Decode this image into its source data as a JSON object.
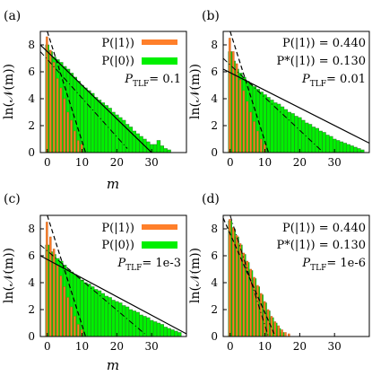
{
  "figure": {
    "colors": {
      "p1": "#ff7f2a",
      "p0": "#00f000",
      "bar_edge": "#2a7a2a",
      "fit": "#000000"
    }
  },
  "chart_data": [
    {
      "type": "bar",
      "panel": "(a)",
      "xlabel": "m",
      "ylabel": "ln(𝒩(m))",
      "xlim": [
        -2,
        40
      ],
      "ylim": [
        0,
        9
      ],
      "xticks": [
        "0",
        "10",
        "20",
        "30"
      ],
      "yticks": [
        "0",
        "2",
        "4",
        "6",
        "8"
      ],
      "legend": [
        "P(|1⟩)",
        "P(|0⟩)"
      ],
      "annotations": [
        "P_TLF = 0.1"
      ],
      "ptlf": "0.1",
      "series": [
        {
          "name": "P(|1⟩)",
          "x": [
            0,
            1,
            2,
            3,
            4,
            5,
            6,
            7,
            8,
            9,
            10
          ],
          "values": [
            8.6,
            7.6,
            6.7,
            5.5,
            4.8,
            4.0,
            3.0,
            2.4,
            1.6,
            0.9,
            0.6
          ]
        },
        {
          "name": "P(|0⟩)",
          "x": [
            0,
            1,
            2,
            3,
            4,
            5,
            6,
            7,
            8,
            9,
            10,
            11,
            12,
            13,
            14,
            15,
            16,
            17,
            18,
            19,
            20,
            21,
            22,
            23,
            24,
            25,
            26,
            27,
            28,
            29,
            30,
            31,
            32,
            33,
            34,
            35
          ],
          "values": [
            8.0,
            7.5,
            7.1,
            6.9,
            6.7,
            6.4,
            6.2,
            5.9,
            5.6,
            5.3,
            5.0,
            4.8,
            4.6,
            4.4,
            4.1,
            3.9,
            3.7,
            3.5,
            3.3,
            3.0,
            2.8,
            2.6,
            2.4,
            2.1,
            1.9,
            1.6,
            1.4,
            1.2,
            1.0,
            0.8,
            0.6,
            0.6,
            0.9,
            0.5,
            0.3,
            0.2
          ]
        }
      ],
      "fit_lines": [
        {
          "x": [
            0,
            11
          ],
          "y": [
            9,
            0
          ]
        },
        {
          "x": [
            -2,
            30
          ],
          "y": [
            8.0,
            0
          ]
        }
      ],
      "dashdot_lines": [
        {
          "x": [
            -2,
            23
          ],
          "y": [
            7.5,
            0.3
          ]
        }
      ]
    },
    {
      "type": "bar",
      "panel": "(b)",
      "xlabel": "m",
      "ylabel": "ln(𝒩(m))",
      "xlim": [
        -2,
        40
      ],
      "ylim": [
        0,
        9
      ],
      "xticks": [
        "0",
        "10",
        "20",
        "30"
      ],
      "yticks": [
        "0",
        "2",
        "4",
        "6",
        "8"
      ],
      "annotations": [
        "P(|1⟩) = 0.440",
        "P*(|1⟩) = 0.130",
        "P_TLF = 0.01"
      ],
      "ptlf": "0.01",
      "p1": "0.440",
      "p1star": "0.130",
      "series": [
        {
          "name": "P(|1⟩)",
          "x": [
            0,
            1,
            2,
            3,
            4,
            5,
            6,
            7,
            8,
            9,
            10
          ],
          "values": [
            8.5,
            7.5,
            6.6,
            5.4,
            4.6,
            3.8,
            3.0,
            2.3,
            1.6,
            1.0,
            0.6
          ]
        },
        {
          "name": "P(|0⟩)",
          "x": [
            0,
            1,
            2,
            3,
            4,
            5,
            6,
            7,
            8,
            9,
            10,
            11,
            12,
            13,
            14,
            15,
            16,
            17,
            18,
            19,
            20,
            21,
            22,
            23,
            24,
            25,
            26,
            27,
            28,
            29,
            30,
            31,
            32,
            33,
            34,
            35,
            36,
            37,
            38
          ],
          "values": [
            7.5,
            6.8,
            6.2,
            5.9,
            5.6,
            5.3,
            5.1,
            4.9,
            4.7,
            4.5,
            4.3,
            4.1,
            3.9,
            3.7,
            3.6,
            3.4,
            3.2,
            3.0,
            2.9,
            2.7,
            2.6,
            2.4,
            2.2,
            2.1,
            1.9,
            1.8,
            1.6,
            1.5,
            1.3,
            1.2,
            1.0,
            0.9,
            0.8,
            0.7,
            0.6,
            0.5,
            0.4,
            0.3,
            0.2
          ]
        }
      ],
      "fit_lines": [
        {
          "x": [
            0,
            11
          ],
          "y": [
            9,
            0
          ]
        },
        {
          "x": [
            -2,
            40
          ],
          "y": [
            6.2,
            0.7
          ]
        }
      ],
      "dashdot_lines": [
        {
          "x": [
            -2,
            26
          ],
          "y": [
            7.0,
            0.2
          ]
        }
      ]
    },
    {
      "type": "bar",
      "panel": "(c)",
      "xlabel": "m",
      "ylabel": "ln(𝒩(m))",
      "xlim": [
        -2,
        40
      ],
      "ylim": [
        0,
        9
      ],
      "xticks": [
        "0",
        "10",
        "20",
        "30"
      ],
      "yticks": [
        "0",
        "2",
        "4",
        "6",
        "8"
      ],
      "legend": [
        "P(|1⟩)",
        "P(|0⟩)"
      ],
      "annotations": [
        "P_TLF = 1e-3"
      ],
      "ptlf": "1e-3",
      "series": [
        {
          "name": "P(|1⟩)",
          "x": [
            0,
            1,
            2,
            3,
            4,
            5,
            6,
            7,
            8,
            9,
            10
          ],
          "values": [
            8.5,
            7.4,
            6.5,
            5.3,
            4.5,
            3.7,
            2.9,
            2.2,
            1.5,
            0.9,
            0.5
          ]
        },
        {
          "name": "P(|0⟩)",
          "x": [
            0,
            1,
            2,
            3,
            4,
            5,
            6,
            7,
            8,
            9,
            10,
            11,
            12,
            13,
            14,
            15,
            16,
            17,
            18,
            19,
            20,
            21,
            22,
            23,
            24,
            25,
            26,
            27,
            28,
            29,
            30,
            31,
            32,
            33,
            34,
            35,
            36,
            37,
            38
          ],
          "values": [
            6.8,
            6.3,
            6.1,
            5.8,
            5.6,
            5.3,
            5.0,
            4.8,
            4.6,
            4.4,
            4.2,
            4.0,
            3.9,
            3.7,
            3.5,
            3.4,
            3.2,
            3.0,
            2.9,
            2.7,
            2.6,
            2.5,
            2.3,
            2.2,
            2.0,
            1.9,
            1.8,
            1.6,
            1.5,
            1.4,
            1.2,
            1.1,
            1.0,
            0.9,
            0.7,
            0.6,
            0.5,
            0.4,
            0.3
          ]
        }
      ],
      "fit_lines": [
        {
          "x": [
            0,
            11
          ],
          "y": [
            9,
            0
          ]
        },
        {
          "x": [
            -2,
            40
          ],
          "y": [
            6.0,
            0.2
          ]
        }
      ],
      "dashdot_lines": [
        {
          "x": [
            -2,
            28
          ],
          "y": [
            6.8,
            0.2
          ]
        }
      ]
    },
    {
      "type": "bar",
      "panel": "(d)",
      "xlabel": "m",
      "ylabel": "ln(𝒩(m))",
      "xlim": [
        -2,
        40
      ],
      "ylim": [
        0,
        9
      ],
      "xticks": [
        "0",
        "10",
        "20",
        "30"
      ],
      "yticks": [
        "0",
        "2",
        "4",
        "6",
        "8"
      ],
      "annotations": [
        "P(|1⟩) = 0.440",
        "P*(|1⟩) = 0.130",
        "P_TLF = 1e-6"
      ],
      "ptlf": "1e-6",
      "p1": "0.440",
      "p1star": "0.130",
      "series": [
        {
          "name": "P(|1⟩)",
          "x": [
            0,
            1,
            2,
            3,
            4,
            5,
            6,
            7,
            8,
            9,
            10,
            11,
            12,
            13,
            14,
            15,
            16,
            17
          ],
          "values": [
            8.7,
            8.1,
            7.5,
            6.9,
            6.2,
            5.6,
            5.0,
            4.4,
            3.8,
            3.2,
            2.6,
            2.0,
            1.5,
            1.1,
            0.8,
            0.5,
            0.3,
            0.2
          ]
        },
        {
          "name": "P(|0⟩)",
          "x": [
            0,
            1,
            2,
            3,
            4,
            5,
            6,
            7,
            8,
            9,
            10,
            11,
            12,
            13,
            14,
            15
          ],
          "values": [
            8.6,
            8.0,
            7.4,
            6.8,
            6.1,
            5.5,
            4.9,
            4.3,
            3.7,
            3.1,
            2.5,
            1.9,
            1.4,
            1.0,
            0.6,
            0.3
          ]
        }
      ],
      "fit_lines": [
        {
          "x": [
            -2,
            13
          ],
          "y": [
            8.8,
            0
          ]
        }
      ],
      "dashdot_lines": [
        {
          "x": [
            0,
            11
          ],
          "y": [
            9.0,
            0
          ]
        }
      ]
    }
  ]
}
